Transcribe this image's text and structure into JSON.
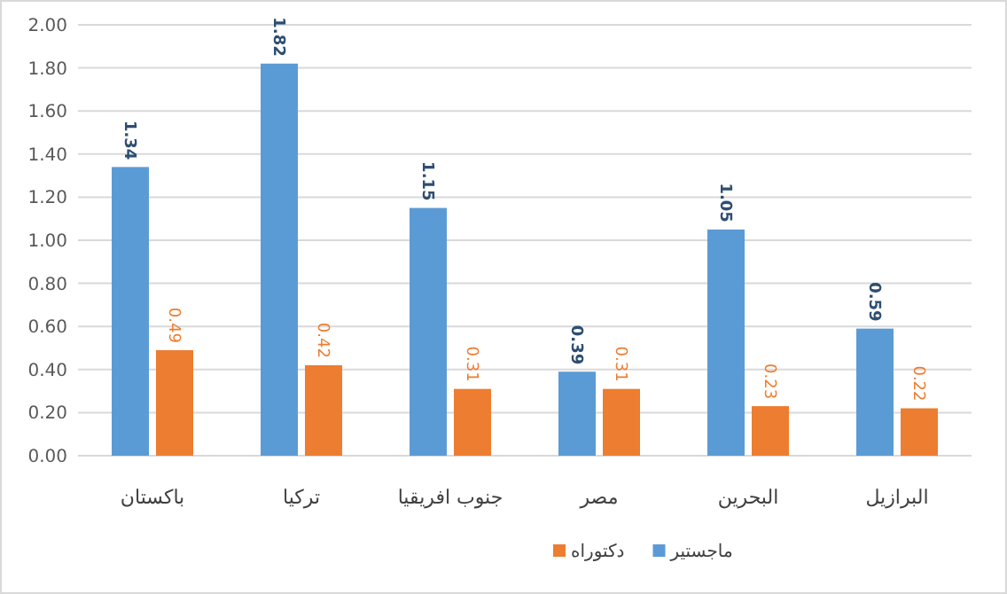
{
  "chart_data": {
    "type": "bar",
    "categories": [
      "باكستان",
      "تركيا",
      "جنوب افريقيا",
      "مصر",
      "البحرين",
      "البرازيل"
    ],
    "series": [
      {
        "name": "ماجستير",
        "color": "#5b9bd5",
        "values": [
          1.34,
          1.82,
          1.15,
          0.39,
          1.05,
          0.59
        ],
        "value_labels": [
          "1.34",
          "1.82",
          "1.15",
          "0.39",
          "1.05",
          "0.59"
        ]
      },
      {
        "name": "دكتوراه",
        "color": "#ed7d31",
        "values": [
          0.49,
          0.42,
          0.31,
          0.31,
          0.23,
          0.22
        ],
        "value_labels": [
          "0.49",
          "0.42",
          "0.31",
          "0.31",
          "0.23",
          "0.22"
        ]
      }
    ],
    "ylim": [
      0,
      2
    ],
    "yticks": [
      {
        "value": 0,
        "label": "0.00"
      },
      {
        "value": 0.2,
        "label": "0.20"
      },
      {
        "value": 0.4,
        "label": "0.40"
      },
      {
        "value": 0.6,
        "label": "0.60"
      },
      {
        "value": 0.8,
        "label": "0.80"
      },
      {
        "value": 1.0,
        "label": "1.00"
      },
      {
        "value": 1.2,
        "label": "1.20"
      },
      {
        "value": 1.4,
        "label": "1.40"
      },
      {
        "value": 1.6,
        "label": "1.60"
      },
      {
        "value": 1.8,
        "label": "1.80"
      },
      {
        "value": 2.0,
        "label": "2.00"
      }
    ],
    "grid": "y",
    "legend": "bottom"
  }
}
